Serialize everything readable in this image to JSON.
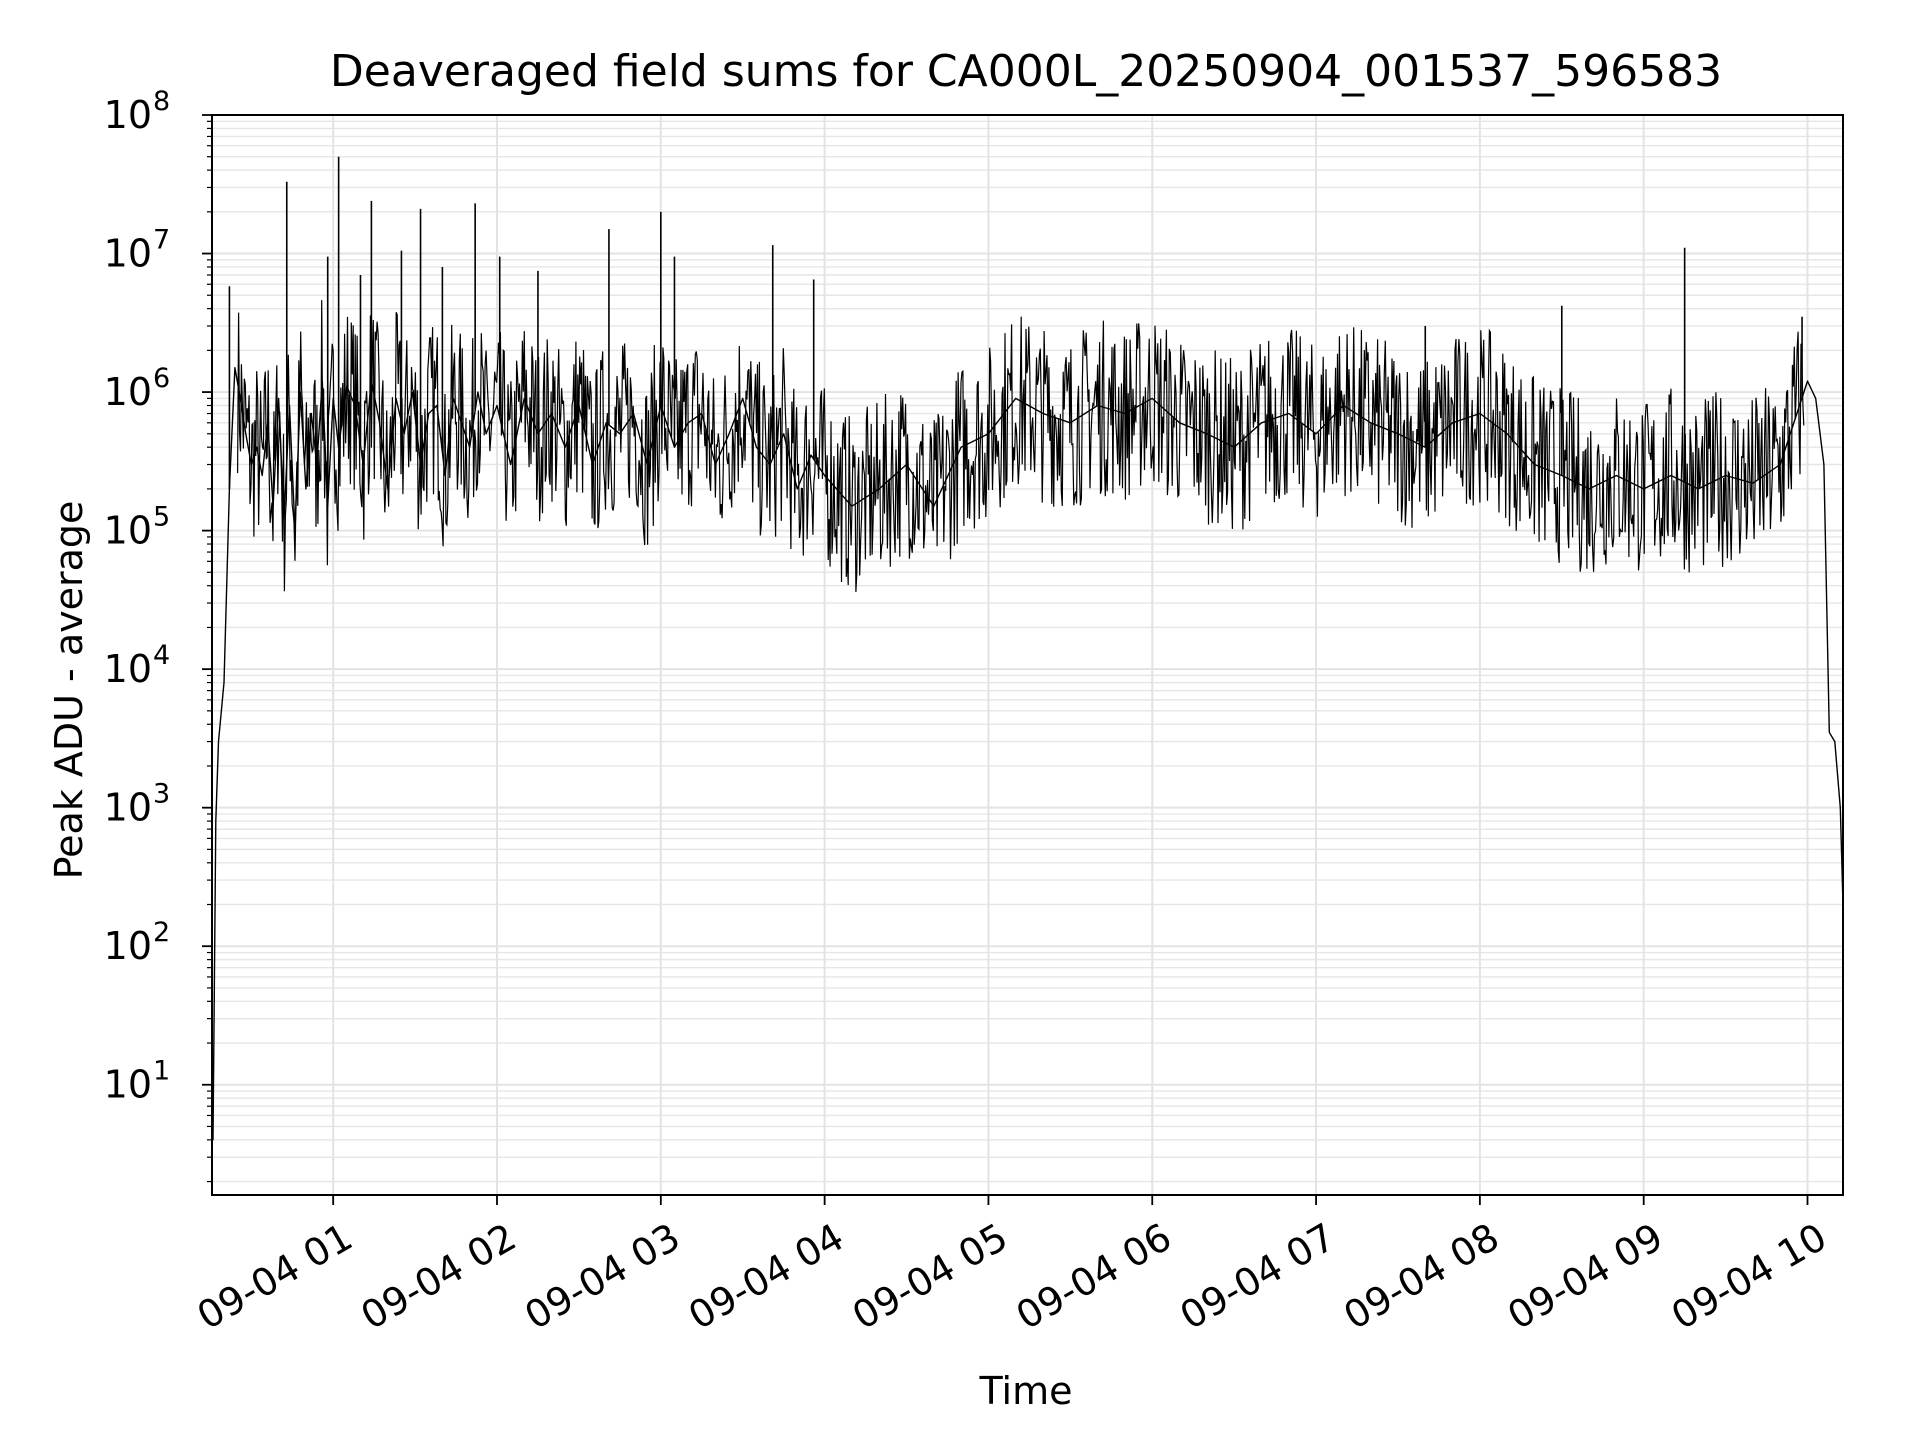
{
  "chart_data": {
    "type": "line",
    "title": "Deaveraged field sums for CA000L_20250904_001537_596583",
    "xlabel": "Time",
    "ylabel": "Peak ADU - average",
    "yscale": "log",
    "grid": true,
    "legend": "none",
    "xlim": [
      "09-04 00:15:37",
      "09-04 10:13"
    ],
    "ylim": [
      1.6,
      100000000
    ],
    "x_ticks": [
      "09-04 01",
      "09-04 02",
      "09-04 03",
      "09-04 04",
      "09-04 05",
      "09-04 06",
      "09-04 07",
      "09-04 08",
      "09-04 09",
      "09-04 10"
    ],
    "y_ticks": [
      {
        "base": "10",
        "exp": "1",
        "value": 10
      },
      {
        "base": "10",
        "exp": "2",
        "value": 100
      },
      {
        "base": "10",
        "exp": "3",
        "value": 1000
      },
      {
        "base": "10",
        "exp": "4",
        "value": 10000
      },
      {
        "base": "10",
        "exp": "5",
        "value": 100000
      },
      {
        "base": "10",
        "exp": "6",
        "value": 1000000
      },
      {
        "base": "10",
        "exp": "7",
        "value": 10000000
      },
      {
        "base": "10",
        "exp": "8",
        "value": 100000000
      }
    ],
    "series": [
      {
        "color": "#000000",
        "x": [
          "09-04 00:15:37",
          "09-04 00:16",
          "09-04 00:17",
          "09-04 00:18",
          "09-04 00:20",
          "09-04 00:22",
          "09-04 00:24",
          "09-04 00:26",
          "09-04 00:28",
          "09-04 00:30",
          "09-04 00:32",
          "09-04 00:34",
          "09-04 00:36",
          "09-04 00:38",
          "09-04 00:40",
          "09-04 00:42",
          "09-04 00:44",
          "09-04 00:46",
          "09-04 00:48",
          "09-04 00:50",
          "09-04 00:52",
          "09-04 00:54",
          "09-04 00:56",
          "09-04 00:58",
          "09-04 01:00",
          "09-04 01:02",
          "09-04 01:05",
          "09-04 01:08",
          "09-04 01:11",
          "09-04 01:14",
          "09-04 01:17",
          "09-04 01:20",
          "09-04 01:23",
          "09-04 01:26",
          "09-04 01:29",
          "09-04 01:32",
          "09-04 01:35",
          "09-04 01:38",
          "09-04 01:41",
          "09-04 01:44",
          "09-04 01:47",
          "09-04 01:50",
          "09-04 01:53",
          "09-04 01:56",
          "09-04 02:00",
          "09-04 02:05",
          "09-04 02:10",
          "09-04 02:15",
          "09-04 02:20",
          "09-04 02:25",
          "09-04 02:30",
          "09-04 02:35",
          "09-04 02:40",
          "09-04 02:45",
          "09-04 02:50",
          "09-04 02:55",
          "09-04 03:00",
          "09-04 03:05",
          "09-04 03:10",
          "09-04 03:15",
          "09-04 03:20",
          "09-04 03:25",
          "09-04 03:30",
          "09-04 03:35",
          "09-04 03:40",
          "09-04 03:45",
          "09-04 03:50",
          "09-04 03:55",
          "09-04 04:00",
          "09-04 04:10",
          "09-04 04:20",
          "09-04 04:30",
          "09-04 04:40",
          "09-04 04:50",
          "09-04 05:00",
          "09-04 05:10",
          "09-04 05:20",
          "09-04 05:30",
          "09-04 05:40",
          "09-04 05:50",
          "09-04 06:00",
          "09-04 06:10",
          "09-04 06:20",
          "09-04 06:30",
          "09-04 06:40",
          "09-04 06:50",
          "09-04 07:00",
          "09-04 07:10",
          "09-04 07:20",
          "09-04 07:30",
          "09-04 07:40",
          "09-04 07:50",
          "09-04 08:00",
          "09-04 08:10",
          "09-04 08:20",
          "09-04 08:30",
          "09-04 08:40",
          "09-04 08:50",
          "09-04 09:00",
          "09-04 09:10",
          "09-04 09:20",
          "09-04 09:30",
          "09-04 09:40",
          "09-04 09:50",
          "09-04 10:00",
          "09-04 10:03",
          "09-04 10:06",
          "09-04 10:08",
          "09-04 10:10",
          "09-04 10:12",
          "09-04 10:13"
        ],
        "y": [
          4,
          4,
          800,
          3000,
          8000,
          200000,
          1500000,
          900000,
          500000,
          300000,
          400000,
          250000,
          600000,
          150000,
          900000,
          120000,
          800000,
          100000,
          1000000,
          200000,
          700000,
          300000,
          1200000,
          150000,
          900000,
          400000,
          1100000,
          800000,
          300000,
          1200000,
          600000,
          200000,
          900000,
          500000,
          1000000,
          300000,
          700000,
          800000,
          250000,
          900000,
          600000,
          400000,
          1000000,
          500000,
          800000,
          300000,
          900000,
          500000,
          700000,
          400000,
          800000,
          300000,
          600000,
          500000,
          700000,
          300000,
          800000,
          400000,
          600000,
          700000,
          300000,
          500000,
          900000,
          400000,
          300000,
          500000,
          200000,
          350000,
          250000,
          150000,
          200000,
          300000,
          150000,
          400000,
          500000,
          900000,
          700000,
          600000,
          800000,
          700000,
          900000,
          600000,
          500000,
          400000,
          600000,
          700000,
          500000,
          800000,
          600000,
          500000,
          400000,
          600000,
          700000,
          500000,
          300000,
          250000,
          200000,
          250000,
          200000,
          250000,
          200000,
          250000,
          220000,
          300000,
          1200000,
          900000,
          300000,
          3500,
          3000,
          1000,
          200
        ]
      }
    ],
    "spikes": [
      {
        "x": "09-04 00:22",
        "y": 5800000
      },
      {
        "x": "09-04 00:43",
        "y": 33000000
      },
      {
        "x": "09-04 00:58",
        "y": 9500000
      },
      {
        "x": "09-04 01:02",
        "y": 50000000
      },
      {
        "x": "09-04 01:10",
        "y": 7000000
      },
      {
        "x": "09-04 01:14",
        "y": 24000000
      },
      {
        "x": "09-04 01:25",
        "y": 10500000
      },
      {
        "x": "09-04 01:32",
        "y": 21000000
      },
      {
        "x": "09-04 01:40",
        "y": 8000000
      },
      {
        "x": "09-04 01:52",
        "y": 23000000
      },
      {
        "x": "09-04 02:01",
        "y": 9500000
      },
      {
        "x": "09-04 02:15",
        "y": 7500000
      },
      {
        "x": "09-04 02:41",
        "y": 15000000
      },
      {
        "x": "09-04 03:00",
        "y": 20000000
      },
      {
        "x": "09-04 03:05",
        "y": 9500000
      },
      {
        "x": "09-04 03:41",
        "y": 11500000
      },
      {
        "x": "09-04 03:56",
        "y": 6500000
      },
      {
        "x": "09-04 07:40",
        "y": 3000000
      },
      {
        "x": "09-04 08:30",
        "y": 4200000
      },
      {
        "x": "09-04 09:15",
        "y": 11000000
      },
      {
        "x": "09-04 09:58",
        "y": 3500000
      }
    ]
  }
}
